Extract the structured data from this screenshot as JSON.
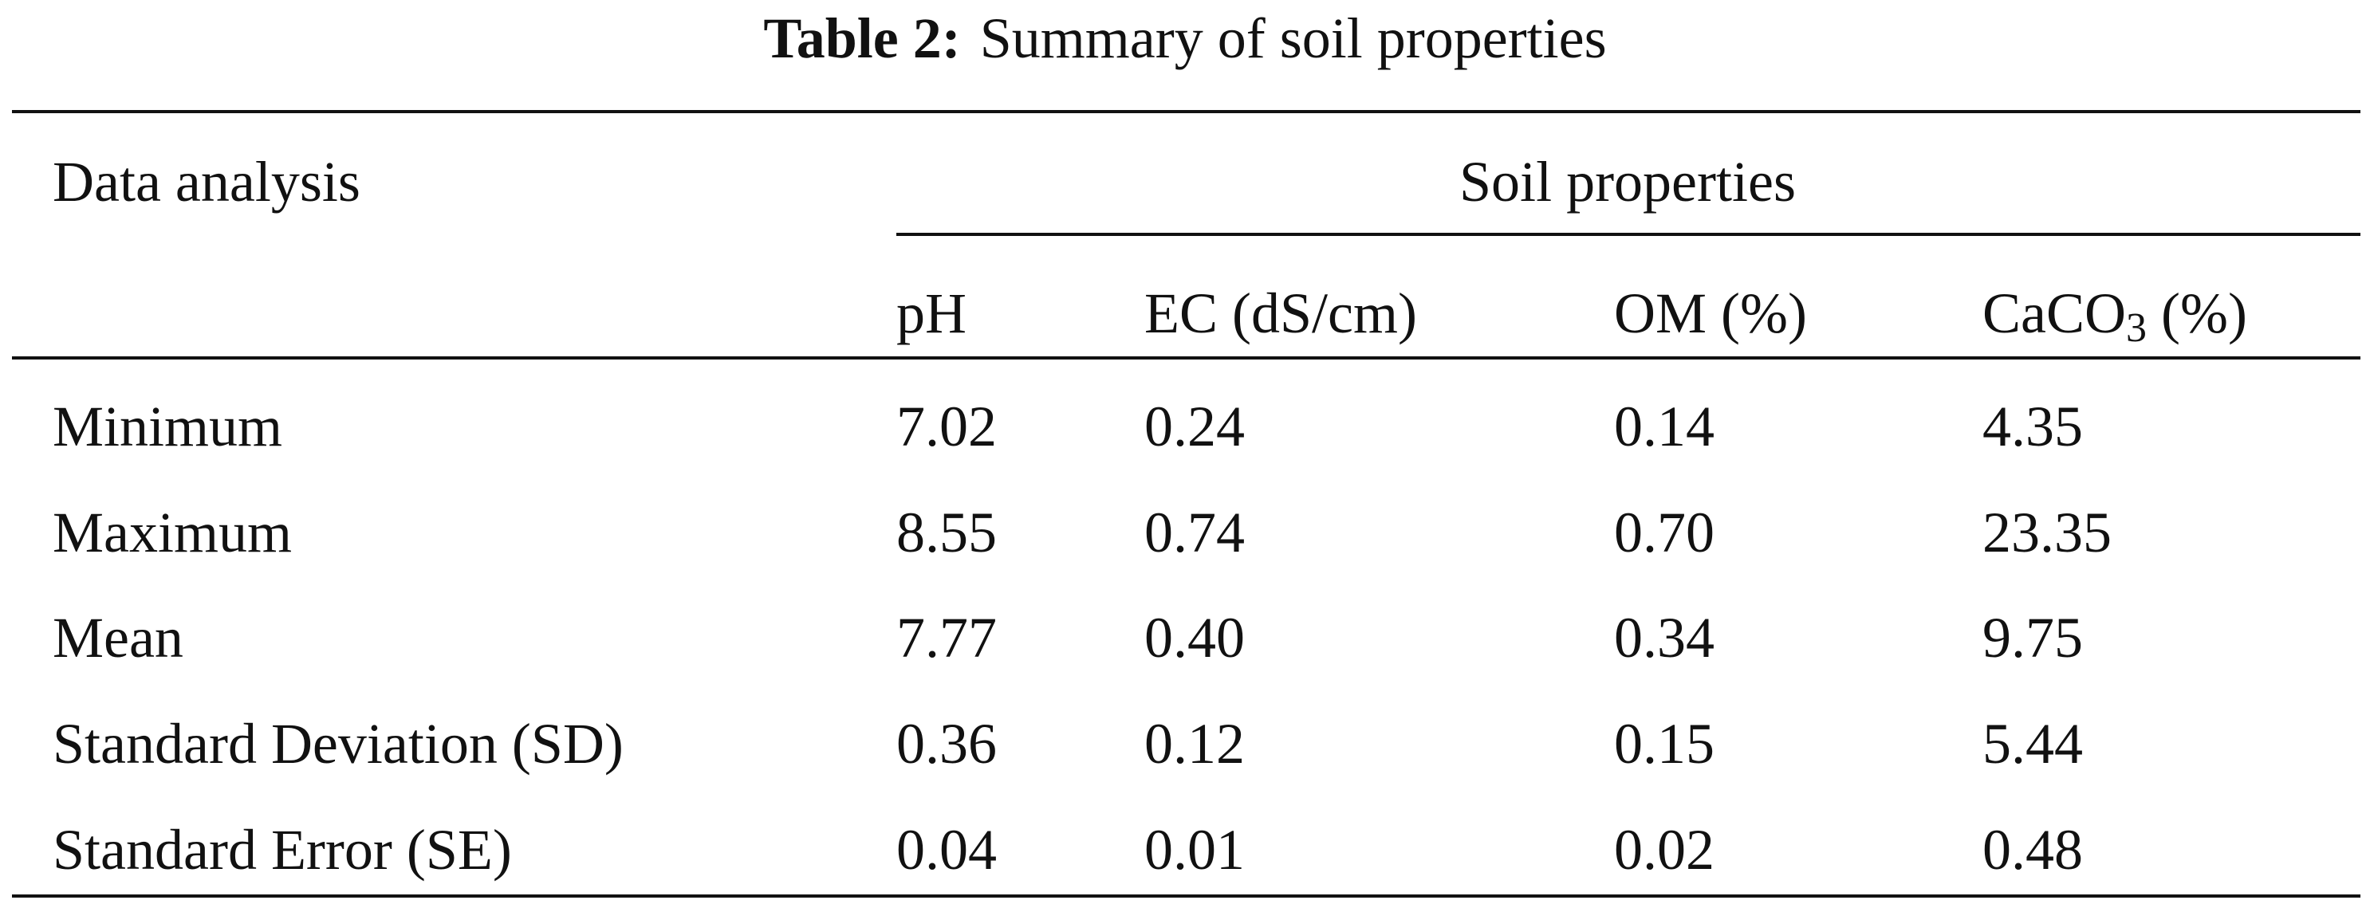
{
  "caption": {
    "label": "Table 2:",
    "title": "Summary of soil properties"
  },
  "table": {
    "row_header": "Data analysis",
    "group_header": "Soil properties",
    "columns": [
      "pH",
      "EC (dS/cm)",
      "OM (%)",
      [
        "CaCO",
        "3",
        " (%)"
      ]
    ],
    "rows": [
      [
        "Minimum",
        "7.02",
        "0.24",
        "0.14",
        "4.35"
      ],
      [
        "Maximum",
        "8.55",
        "0.74",
        "0.70",
        "23.35"
      ],
      [
        "Mean",
        "7.77",
        "0.40",
        "0.34",
        "9.75"
      ],
      [
        "Standard Deviation (SD)",
        "0.36",
        "0.12",
        "0.15",
        "5.44"
      ],
      [
        "Standard Error (SE)",
        "0.04",
        "0.01",
        "0.02",
        "0.48"
      ]
    ]
  }
}
